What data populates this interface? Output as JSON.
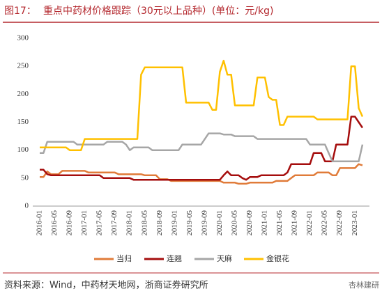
{
  "chart_data": {
    "type": "line",
    "figure_label": "图17：",
    "title": "重点中药材价格跟踪（30元以上品种）(单位：元/kg)",
    "source": "资料来源：Wind，中药材天地网，浙商证券研究所",
    "watermark": "杏林建研",
    "categories": [
      "2016-01",
      null,
      null,
      null,
      "2016-05",
      null,
      null,
      null,
      "2016-09",
      null,
      null,
      null,
      "2017-01",
      null,
      null,
      null,
      "2017-05",
      null,
      null,
      null,
      "2017-09",
      null,
      null,
      null,
      "2018-01",
      null,
      null,
      null,
      "2018-05",
      null,
      null,
      null,
      "2018-09",
      null,
      null,
      null,
      "2019-01",
      null,
      null,
      null,
      "2019-05",
      null,
      null,
      null,
      "2019-09",
      null,
      null,
      null,
      "2020-01",
      null,
      null,
      null,
      "2020-05",
      null,
      null,
      null,
      "2020-09",
      null,
      null,
      null,
      "2021-01",
      null,
      null,
      null,
      "2021-05",
      null,
      null,
      null,
      "2021-09",
      null,
      null,
      null,
      "2022-01",
      null,
      null,
      null,
      "2022-05",
      null,
      null,
      null,
      "2022-09",
      null,
      null,
      null,
      "2023-01",
      null,
      null
    ],
    "series": [
      {
        "name": "当归",
        "color": "#e07b39",
        "values": [
          52,
          52,
          62,
          57,
          57,
          57,
          63,
          63,
          63,
          63,
          63,
          63,
          63,
          60,
          60,
          60,
          60,
          60,
          60,
          60,
          60,
          57,
          57,
          57,
          57,
          57,
          57,
          57,
          55,
          55,
          55,
          55,
          48,
          48,
          48,
          45,
          45,
          45,
          45,
          45,
          45,
          45,
          45,
          45,
          45,
          45,
          45,
          45,
          45,
          42,
          42,
          42,
          42,
          40,
          40,
          40,
          42,
          42,
          42,
          42,
          42,
          42,
          42,
          45,
          45,
          45,
          45,
          50,
          55,
          55,
          55,
          55,
          55,
          55,
          60,
          60,
          60,
          60,
          55,
          55,
          68,
          68,
          68,
          68,
          68,
          75,
          73
        ]
      },
      {
        "name": "连翘",
        "color": "#a50d0d",
        "values": [
          65,
          65,
          57,
          55,
          55,
          55,
          55,
          55,
          55,
          55,
          55,
          55,
          55,
          55,
          55,
          55,
          55,
          50,
          50,
          50,
          50,
          50,
          50,
          50,
          50,
          47,
          47,
          47,
          47,
          47,
          47,
          47,
          47,
          47,
          47,
          47,
          47,
          47,
          47,
          47,
          47,
          47,
          47,
          47,
          47,
          47,
          47,
          47,
          47,
          55,
          62,
          55,
          55,
          55,
          50,
          47,
          52,
          52,
          52,
          55,
          55,
          55,
          55,
          55,
          55,
          55,
          60,
          75,
          75,
          75,
          75,
          75,
          75,
          95,
          95,
          95,
          80,
          80,
          80,
          110,
          110,
          110,
          110,
          160,
          160,
          150,
          140
        ]
      },
      {
        "name": "天麻",
        "color": "#a6a6a6",
        "values": [
          95,
          95,
          115,
          115,
          115,
          115,
          115,
          115,
          115,
          115,
          110,
          110,
          110,
          110,
          110,
          110,
          110,
          110,
          115,
          115,
          115,
          115,
          115,
          110,
          100,
          105,
          105,
          105,
          105,
          105,
          100,
          100,
          100,
          100,
          100,
          100,
          100,
          100,
          110,
          110,
          110,
          110,
          110,
          110,
          120,
          130,
          130,
          130,
          130,
          128,
          128,
          128,
          125,
          125,
          125,
          125,
          125,
          125,
          120,
          120,
          120,
          120,
          120,
          120,
          120,
          120,
          120,
          120,
          120,
          120,
          120,
          120,
          110,
          110,
          110,
          110,
          110,
          95,
          80,
          80,
          80,
          80,
          80,
          80,
          80,
          80,
          110
        ]
      },
      {
        "name": "金银花",
        "color": "#ffc000",
        "values": [
          105,
          105,
          105,
          105,
          105,
          105,
          105,
          105,
          100,
          100,
          100,
          100,
          120,
          120,
          120,
          120,
          120,
          120,
          120,
          120,
          120,
          120,
          120,
          120,
          120,
          120,
          120,
          235,
          248,
          248,
          248,
          248,
          248,
          248,
          248,
          248,
          248,
          248,
          248,
          185,
          185,
          185,
          185,
          185,
          185,
          185,
          172,
          172,
          240,
          260,
          235,
          235,
          180,
          180,
          180,
          180,
          180,
          180,
          230,
          230,
          230,
          195,
          190,
          190,
          145,
          145,
          160,
          160,
          160,
          160,
          160,
          160,
          160,
          160,
          155,
          155,
          155,
          155,
          155,
          155,
          155,
          155,
          155,
          250,
          250,
          175,
          160
        ]
      }
    ],
    "ylim": [
      0,
      300
    ],
    "yticks": [
      0,
      50,
      100,
      150,
      200,
      250,
      300
    ],
    "grid": false,
    "legend": "bottom"
  }
}
